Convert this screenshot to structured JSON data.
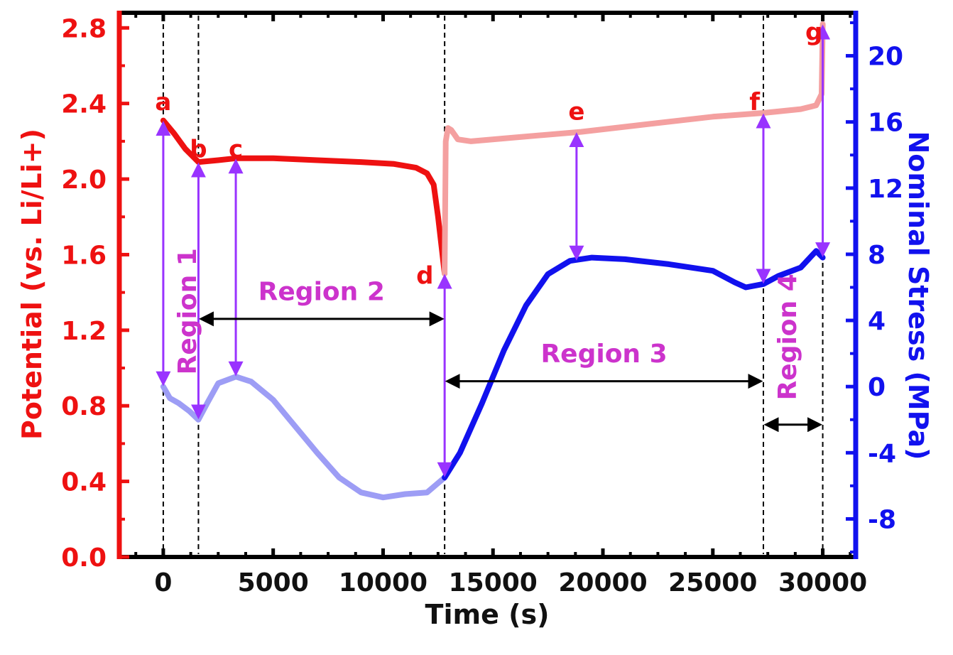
{
  "chart_data": {
    "type": "line",
    "title": "",
    "xlabel": "Time (s)",
    "ylabel_left": "Potential (vs. Li/Li+)",
    "ylabel_right": "Nominal Stress (MPa)",
    "xlim": [
      -2000,
      31500
    ],
    "ylim_left": [
      0.0,
      2.88
    ],
    "ylim_right": [
      -10.3,
      22.6
    ],
    "x_ticks": [
      0,
      5000,
      10000,
      15000,
      20000,
      25000,
      30000
    ],
    "x_tick_labels": [
      "0",
      "5000",
      "10000",
      "15000",
      "20000",
      "25000",
      "30000"
    ],
    "y_left_ticks": [
      0.0,
      0.4,
      0.8,
      1.2,
      1.6,
      2.0,
      2.4,
      2.8
    ],
    "y_left_tick_labels": [
      "0.0",
      "0.4",
      "0.8",
      "1.2",
      "1.6",
      "2.0",
      "2.4",
      "2.8"
    ],
    "y_right_ticks": [
      -8,
      -4,
      0,
      4,
      8,
      12,
      16,
      20
    ],
    "y_right_tick_labels": [
      "-8",
      "-4",
      "0",
      "4",
      "8",
      "12",
      "16",
      "20"
    ],
    "colors": {
      "potential": "#ee1111",
      "potential_light": "#f4a0a0",
      "stress": "#1111ee",
      "stress_light": "#9d9df5",
      "arrow_purple": "#9933ff",
      "region_label": "#cc33cc",
      "axis_left": "#ee1111",
      "axis_right": "#1111ee"
    },
    "series": [
      {
        "axis": "left",
        "segments": [
          {
            "style": "dark",
            "points": [
              [
                0,
                2.31
              ],
              [
                500,
                2.24
              ],
              [
                1000,
                2.16
              ],
              [
                1600,
                2.09
              ],
              [
                2500,
                2.1
              ],
              [
                3300,
                2.11
              ],
              [
                5000,
                2.11
              ],
              [
                7000,
                2.1
              ],
              [
                9000,
                2.09
              ],
              [
                10500,
                2.08
              ],
              [
                11500,
                2.06
              ],
              [
                12000,
                2.03
              ],
              [
                12300,
                1.97
              ],
              [
                12500,
                1.8
              ],
              [
                12650,
                1.65
              ],
              [
                12800,
                1.5
              ]
            ]
          },
          {
            "style": "light",
            "points": [
              [
                12800,
                1.5
              ],
              [
                12850,
                2.2
              ],
              [
                12950,
                2.27
              ],
              [
                13100,
                2.26
              ],
              [
                13400,
                2.21
              ],
              [
                14000,
                2.2
              ],
              [
                16000,
                2.22
              ],
              [
                19000,
                2.25
              ],
              [
                22000,
                2.29
              ],
              [
                25000,
                2.33
              ],
              [
                27300,
                2.35
              ],
              [
                29000,
                2.37
              ],
              [
                29700,
                2.39
              ],
              [
                29950,
                2.45
              ],
              [
                30000,
                2.82
              ]
            ]
          }
        ]
      },
      {
        "axis": "right",
        "segments": [
          {
            "style": "light",
            "points": [
              [
                0,
                0
              ],
              [
                300,
                -0.7
              ],
              [
                700,
                -1.0
              ],
              [
                1200,
                -1.5
              ],
              [
                1600,
                -2.0
              ],
              [
                2000,
                -1.0
              ],
              [
                2500,
                0.2
              ],
              [
                3300,
                0.6
              ],
              [
                4000,
                0.3
              ],
              [
                5000,
                -0.8
              ],
              [
                6000,
                -2.4
              ],
              [
                7000,
                -4.0
              ],
              [
                8000,
                -5.5
              ],
              [
                9000,
                -6.4
              ],
              [
                10000,
                -6.7
              ],
              [
                11000,
                -6.5
              ],
              [
                12000,
                -6.4
              ],
              [
                12800,
                -5.5
              ]
            ]
          },
          {
            "style": "dark",
            "points": [
              [
                12800,
                -5.5
              ],
              [
                13500,
                -4.0
              ],
              [
                14500,
                -1.0
              ],
              [
                15500,
                2.2
              ],
              [
                16500,
                4.9
              ],
              [
                17500,
                6.8
              ],
              [
                18500,
                7.6
              ],
              [
                19500,
                7.8
              ],
              [
                21000,
                7.7
              ],
              [
                23000,
                7.4
              ],
              [
                25000,
                7.0
              ],
              [
                26000,
                6.3
              ],
              [
                26500,
                6.0
              ],
              [
                27300,
                6.2
              ],
              [
                28000,
                6.7
              ],
              [
                29000,
                7.2
              ],
              [
                29700,
                8.2
              ],
              [
                30000,
                7.8
              ]
            ]
          }
        ]
      }
    ],
    "vertical_lines": [
      0,
      1600,
      12800,
      27300,
      30000
    ],
    "point_labels": [
      {
        "text": "a",
        "x": 0,
        "y": 2.41
      },
      {
        "text": "b",
        "x": 1600,
        "y": 2.16
      },
      {
        "text": "c",
        "x": 3300,
        "y": 2.16
      },
      {
        "text": "d",
        "x": 11900,
        "y": 1.49
      },
      {
        "text": "e",
        "x": 18800,
        "y": 2.36
      },
      {
        "text": "f",
        "x": 26900,
        "y": 2.41
      },
      {
        "text": "g",
        "x": 29600,
        "y": 2.78
      }
    ],
    "state_arrows": [
      {
        "x": 0,
        "from_potential": 2.31,
        "to_stress": 0
      },
      {
        "x": 1600,
        "from_potential": 2.09,
        "to_stress": -2.0
      },
      {
        "x": 3300,
        "from_potential": 2.11,
        "to_stress": 0.6
      },
      {
        "x": 12800,
        "from_potential": 1.5,
        "to_stress": -5.5
      },
      {
        "x": 18800,
        "from_potential": 2.25,
        "to_stress": 7.6
      },
      {
        "x": 27300,
        "from_potential": 2.35,
        "to_stress": 6.2
      },
      {
        "x": 30000,
        "from_potential": 2.82,
        "to_stress": 7.8
      }
    ],
    "regions": [
      {
        "name": "Region 1",
        "vertical": true,
        "x": 1100,
        "y": 1.3
      },
      {
        "name": "Region 2",
        "x1": 1600,
        "x2": 12800,
        "arrow_y": 1.26,
        "label_y": 1.36
      },
      {
        "name": "Region 3",
        "x1": 12800,
        "x2": 27300,
        "arrow_y": 0.93,
        "label_y": 1.03
      },
      {
        "name": "Region 4",
        "vertical": true,
        "x1": 27300,
        "x2": 30000,
        "arrow_y": -2.3,
        "label_x": 28400,
        "label_y": 3.0
      }
    ],
    "grid": false
  }
}
